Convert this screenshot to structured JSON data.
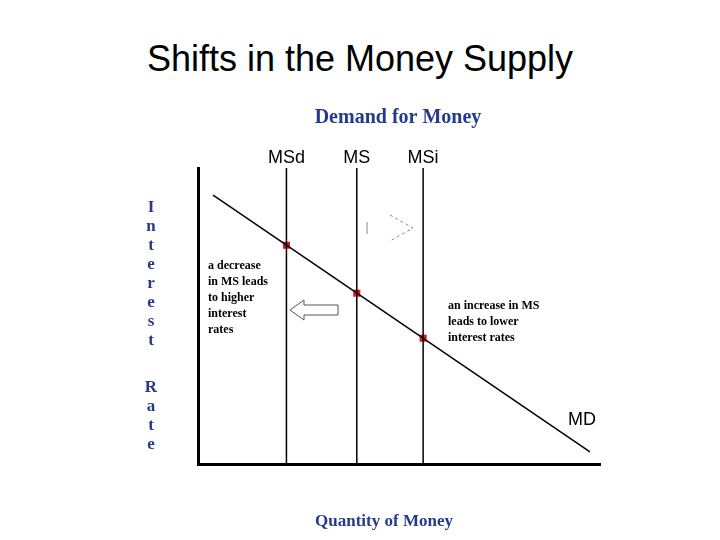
{
  "page_title": "Shifts in the Money Supply",
  "chart_data": {
    "type": "line",
    "title": "Demand for Money",
    "x_label": "Quantity of Money",
    "y_label": "Interest Rate",
    "xlim": [
      0,
      100
    ],
    "ylim": [
      0,
      100
    ],
    "tick_labels": false,
    "grid": false,
    "series": [
      {
        "name": "MD",
        "color": "#000000",
        "x": [
          3.75,
          97.5
        ],
        "values": [
          90.8,
          4.1
        ],
        "marker": "none",
        "line_style": "solid"
      },
      {
        "name": "MSd",
        "color": "#000000",
        "x": [
          22,
          22
        ],
        "values": [
          0,
          100
        ],
        "marker": "none",
        "line_style": "solid"
      },
      {
        "name": "MS",
        "color": "#000000",
        "x": [
          39.5,
          39.5
        ],
        "values": [
          0,
          100
        ],
        "marker": "none",
        "line_style": "solid"
      },
      {
        "name": "MSi",
        "color": "#000000",
        "x": [
          56,
          56
        ],
        "values": [
          0,
          100
        ],
        "marker": "none",
        "line_style": "solid"
      },
      {
        "color": "#e8141a",
        "x": [
          22,
          39.5,
          56
        ],
        "values": [
          73.9,
          57.7,
          42.5
        ],
        "marker": "square",
        "line_style": "none"
      }
    ],
    "annotations": [
      {
        "text": [
          "a decrease",
          "in MS leads",
          "to higher",
          "interest",
          "rates"
        ]
      },
      {
        "text": [
          "an increase in MS",
          "leads to lower",
          "interest rates"
        ]
      }
    ]
  }
}
